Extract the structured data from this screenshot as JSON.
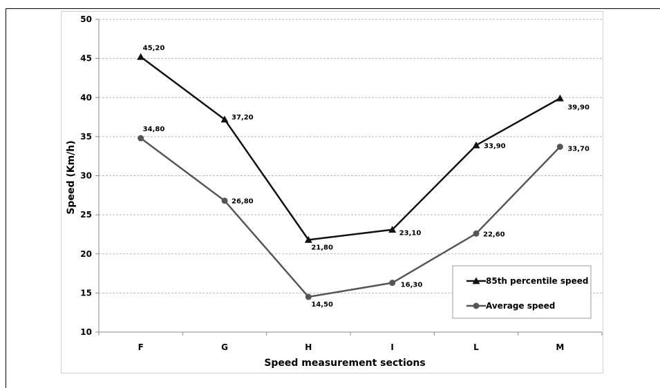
{
  "chart_data": {
    "type": "line",
    "categories": [
      "F",
      "G",
      "H",
      "I",
      "L",
      "M"
    ],
    "series": [
      {
        "name": "85th percentile speed",
        "values": [
          45.2,
          37.2,
          21.8,
          23.1,
          33.9,
          39.9
        ],
        "labels": [
          "45,20",
          "37,20",
          "21,80",
          "23,10",
          "33,90",
          "39,90"
        ],
        "marker": "triangle",
        "color": "#111111"
      },
      {
        "name": "Average speed",
        "values": [
          34.8,
          26.8,
          14.5,
          16.3,
          22.6,
          33.7
        ],
        "labels": [
          "34,80",
          "26,80",
          "14,50",
          "16,30",
          "22,60",
          "33,70"
        ],
        "marker": "circle",
        "color": "#555555"
      }
    ],
    "xlabel": "Speed measurement sections",
    "ylabel": "Speed (Km/h)",
    "ylim": [
      10,
      50
    ],
    "yticks": [
      10,
      15,
      20,
      25,
      30,
      35,
      40,
      45,
      50
    ],
    "grid": true,
    "legend": "bottom-right"
  }
}
